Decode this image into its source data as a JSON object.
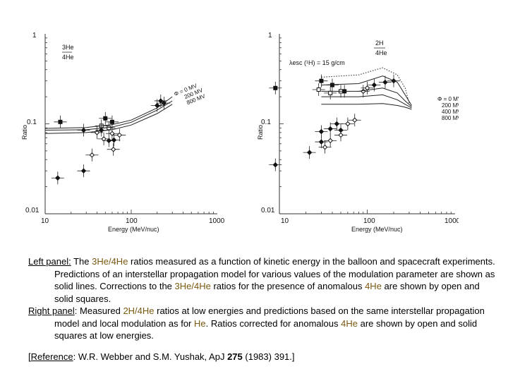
{
  "left_chart": {
    "type": "scatter",
    "ylabel": "Ratio",
    "xlabel": "Energy (MeV/nuc)",
    "title": "3He/4He",
    "title_top": "3He",
    "title_bottom": "4He",
    "x_scale": "log",
    "y_scale": "log",
    "xlim": [
      10,
      1000
    ],
    "ylim": [
      0.01,
      1
    ],
    "x_ticks": [
      "10",
      "100",
      "1000"
    ],
    "y_ticks": [
      "1",
      "0.1",
      "0.01"
    ],
    "phi_label": "Φ = 0 MV",
    "curve_labels": [
      "200 MV",
      "800 MV"
    ],
    "series": [
      {
        "name": "solid squares",
        "points": [
          [
            15,
            0.105
          ],
          [
            50,
            0.115
          ],
          [
            60,
            0.105
          ]
        ]
      },
      {
        "name": "open squares",
        "points": [
          [
            45,
            0.095
          ],
          [
            55,
            0.09
          ]
        ]
      },
      {
        "name": "solid diamonds",
        "points": [
          [
            14,
            0.025
          ],
          [
            28,
            0.03
          ],
          [
            28,
            0.085
          ],
          [
            45,
            0.085
          ],
          [
            55,
            0.065
          ],
          [
            63,
            0.066
          ],
          [
            200,
            0.16
          ],
          [
            220,
            0.18
          ],
          [
            240,
            0.17
          ]
        ]
      },
      {
        "name": "open diamonds",
        "points": [
          [
            35,
            0.045
          ],
          [
            40,
            0.08
          ],
          [
            48,
            0.068
          ],
          [
            60,
            0.078
          ],
          [
            62,
            0.052
          ],
          [
            73,
            0.075
          ]
        ]
      },
      {
        "name": "Φ = 0 MV",
        "points": [
          [
            10,
            0.089
          ],
          [
            30,
            0.091
          ],
          [
            60,
            0.098
          ],
          [
            100,
            0.11
          ],
          [
            200,
            0.15
          ],
          [
            300,
            0.2
          ]
        ]
      },
      {
        "name": "200 MV",
        "points": [
          [
            10,
            0.085
          ],
          [
            30,
            0.086
          ],
          [
            60,
            0.092
          ],
          [
            100,
            0.104
          ],
          [
            200,
            0.142
          ],
          [
            300,
            0.18
          ]
        ]
      },
      {
        "name": "800 MV",
        "points": [
          [
            10,
            0.078
          ],
          [
            30,
            0.08
          ],
          [
            60,
            0.086
          ],
          [
            100,
            0.097
          ],
          [
            200,
            0.13
          ],
          [
            300,
            0.165
          ]
        ]
      }
    ]
  },
  "right_chart": {
    "type": "scatter",
    "ylabel": "Ratio",
    "xlabel": "Energy (MeV/nuc)",
    "title": "2H/4He",
    "title_top": "2H",
    "title_bottom": "4He",
    "annotation": "λesc (¹H) = 15 g/cm",
    "x_scale": "log",
    "y_scale": "log",
    "xlim": [
      10,
      1000
    ],
    "ylim": [
      0.01,
      1
    ],
    "x_ticks": [
      "10",
      "100",
      "1000"
    ],
    "y_ticks": [
      "1",
      "0.1",
      "0.01"
    ],
    "phi_label": "Φ = 0 MV",
    "curve_labels": [
      "200 MV",
      "400 MV",
      "800 MV"
    ],
    "series": [
      {
        "name": "solid squares",
        "points": [
          [
            9,
            0.25
          ],
          [
            30,
            0.3
          ],
          [
            40,
            0.27
          ],
          [
            55,
            0.23
          ]
        ]
      },
      {
        "name": "open squares",
        "points": [
          [
            28,
            0.24
          ],
          [
            38,
            0.22
          ],
          [
            50,
            0.23
          ]
        ]
      },
      {
        "name": "solid diamonds",
        "points": [
          [
            9,
            0.035
          ],
          [
            22,
            0.048
          ],
          [
            30,
            0.063
          ],
          [
            30,
            0.082
          ],
          [
            38,
            0.088
          ],
          [
            45,
            0.1
          ],
          [
            50,
            0.085
          ],
          [
            120,
            0.27
          ],
          [
            160,
            0.29
          ],
          [
            200,
            0.3
          ]
        ]
      },
      {
        "name": "open diamonds",
        "points": [
          [
            33,
            0.055
          ],
          [
            38,
            0.065
          ],
          [
            50,
            0.075
          ],
          [
            60,
            0.1
          ],
          [
            72,
            0.11
          ],
          [
            90,
            0.23
          ],
          [
            100,
            0.25
          ]
        ]
      },
      {
        "name": "dotted model",
        "points": [
          [
            30,
            0.33
          ],
          [
            80,
            0.35
          ],
          [
            150,
            0.42
          ],
          [
            220,
            0.35
          ],
          [
            270,
            0.25
          ],
          [
            300,
            0.17
          ]
        ]
      },
      {
        "name": "Φ = 0 MV",
        "points": [
          [
            30,
            0.27
          ],
          [
            80,
            0.28
          ],
          [
            150,
            0.34
          ],
          [
            220,
            0.29
          ],
          [
            270,
            0.21
          ],
          [
            320,
            0.16
          ]
        ]
      },
      {
        "name": "200 MV",
        "points": [
          [
            30,
            0.23
          ],
          [
            80,
            0.23
          ],
          [
            150,
            0.25
          ],
          [
            220,
            0.22
          ],
          [
            270,
            0.18
          ],
          [
            320,
            0.155
          ]
        ]
      },
      {
        "name": "400 MV",
        "points": [
          [
            30,
            0.2
          ],
          [
            80,
            0.2
          ],
          [
            150,
            0.21
          ],
          [
            220,
            0.185
          ],
          [
            270,
            0.165
          ],
          [
            320,
            0.15
          ]
        ]
      },
      {
        "name": "800 MV",
        "points": [
          [
            30,
            0.165
          ],
          [
            80,
            0.165
          ],
          [
            150,
            0.168
          ],
          [
            220,
            0.16
          ],
          [
            270,
            0.153
          ],
          [
            320,
            0.145
          ]
        ]
      }
    ]
  },
  "caption": {
    "left_title": "Left panel:",
    "left_text1": " The ",
    "he3_he4": "3He/4He",
    "left_text2": " ratios measured as a function of kinetic energy in the balloon and spacecraft experiments. Predictions of an interstellar propagation model for various values of the modulation parameter  are shown as solid lines. Corrections to the ",
    "left_text3": " ratios for the presence of anomalous ",
    "he4": "4He",
    "left_text4": " are shown by open and solid squares.",
    "right_title": "Right panel",
    "right_text1": ": Measured ",
    "h2_he4": "2H/4He",
    "right_text2": " ratios at low energies and predictions based on the same interstellar propagation model and local modulation as for ",
    "he": "He",
    "right_text3": ". Ratios corrected for anomalous ",
    "right_text4": " are shown by open and solid squares at low energies.",
    "ref_open": "[",
    "ref_label": "Reference",
    "ref_text": ": W.R. Webber and S.M. Yushak, ApJ ",
    "ref_volume": "275",
    "ref_end": " (1983) 391.]"
  },
  "colors": {
    "highlight": "#7a5a12",
    "ink": "#111111"
  }
}
